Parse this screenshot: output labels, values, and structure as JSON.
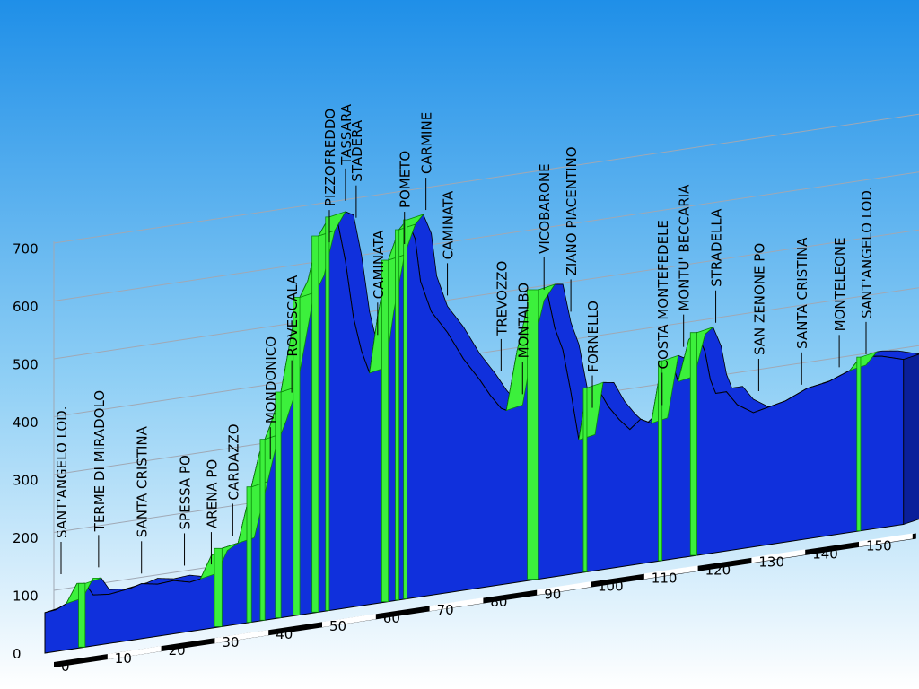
{
  "chart_data": {
    "type": "area",
    "subtype": "3d-elevation-profile",
    "title": "",
    "xlabel": "",
    "ylabel": "",
    "xlim": [
      0,
      160
    ],
    "ylim": [
      0,
      700
    ],
    "y_ticks": [
      0,
      100,
      200,
      300,
      400,
      500,
      600,
      700
    ],
    "x_ticks": [
      0,
      10,
      20,
      30,
      40,
      50,
      60,
      70,
      80,
      90,
      100,
      110,
      120,
      130,
      140,
      150
    ],
    "grid": true,
    "colors": {
      "sky_top": "#1f8fe8",
      "sky_mid": "#8fcff5",
      "sky_bottom": "#ffffff",
      "profile_fill": "#1030dc",
      "climb_fill": "#3cf03c",
      "climb_stroke": "#0a8a0a",
      "grid": "#a0a8b4",
      "axis_band": "#000000"
    },
    "profile": [
      [
        0,
        70
      ],
      [
        2,
        72
      ],
      [
        4,
        80
      ],
      [
        6,
        112
      ],
      [
        7.5,
        110
      ],
      [
        9,
        88
      ],
      [
        12,
        85
      ],
      [
        16,
        90
      ],
      [
        18,
        95
      ],
      [
        21,
        90
      ],
      [
        24,
        92
      ],
      [
        27,
        85
      ],
      [
        29,
        88
      ],
      [
        31,
        125
      ],
      [
        33,
        135
      ],
      [
        36,
        140
      ],
      [
        38,
        215
      ],
      [
        40,
        290
      ],
      [
        42,
        335
      ],
      [
        44,
        390
      ],
      [
        47,
        540
      ],
      [
        49,
        575
      ],
      [
        51,
        650
      ],
      [
        53,
        680
      ],
      [
        54.5,
        672
      ],
      [
        56,
        600
      ],
      [
        57.5,
        500
      ],
      [
        59,
        440
      ],
      [
        60.5,
        400
      ],
      [
        62,
        495
      ],
      [
        64,
        590
      ],
      [
        66,
        640
      ],
      [
        67.5,
        655
      ],
      [
        69,
        620
      ],
      [
        70,
        545
      ],
      [
        72,
        490
      ],
      [
        75,
        450
      ],
      [
        78,
        400
      ],
      [
        81,
        360
      ],
      [
        83,
        330
      ],
      [
        85,
        305
      ],
      [
        86,
        300
      ],
      [
        88,
        400
      ],
      [
        90,
        475
      ],
      [
        92,
        500
      ],
      [
        93.5,
        498
      ],
      [
        95,
        430
      ],
      [
        96.5,
        390
      ],
      [
        98,
        315
      ],
      [
        99.5,
        230
      ],
      [
        101,
        318
      ],
      [
        103,
        315
      ],
      [
        105,
        280
      ],
      [
        107,
        255
      ],
      [
        109,
        235
      ],
      [
        111,
        250
      ],
      [
        113,
        240
      ],
      [
        115,
        345
      ],
      [
        117,
        335
      ],
      [
        118,
        305
      ],
      [
        120,
        375
      ],
      [
        121.5,
        385
      ],
      [
        123,
        350
      ],
      [
        124,
        300
      ],
      [
        125,
        275
      ],
      [
        127,
        275
      ],
      [
        129,
        250
      ],
      [
        132,
        232
      ],
      [
        135,
        238
      ],
      [
        138,
        244
      ],
      [
        142,
        260
      ],
      [
        146,
        266
      ],
      [
        150,
        280
      ],
      [
        152,
        300
      ],
      [
        153,
        300
      ],
      [
        156,
        296
      ],
      [
        160,
        285
      ]
    ],
    "climbs": [
      [
        4,
        7.5
      ],
      [
        29,
        33
      ],
      [
        36,
        38.5
      ],
      [
        38.5,
        41
      ],
      [
        41,
        44
      ],
      [
        44,
        47.5
      ],
      [
        47.5,
        51
      ],
      [
        51,
        53
      ],
      [
        60.5,
        64
      ],
      [
        64,
        66
      ],
      [
        66,
        67.5
      ],
      [
        86,
        92
      ],
      [
        99.5,
        101
      ],
      [
        113,
        115
      ],
      [
        118,
        121.5
      ],
      [
        150,
        152
      ]
    ],
    "places": [
      {
        "name": "SANT'ANGELO LOD.",
        "km": 0
      },
      {
        "name": "TERME DI MIRADOLO",
        "km": 7
      },
      {
        "name": "SANTA CRISTINA",
        "km": 15
      },
      {
        "name": "SPESSA PO",
        "km": 23
      },
      {
        "name": "ARENA PO",
        "km": 28
      },
      {
        "name": "CARDAZZO",
        "km": 32
      },
      {
        "name": "MONDONICO",
        "km": 39
      },
      {
        "name": "ROVESCALA",
        "km": 43
      },
      {
        "name": "PIZZOFREDDO",
        "km": 50
      },
      {
        "name": "TASSARA",
        "km": 53
      },
      {
        "name": "STADERA",
        "km": 55
      },
      {
        "name": "CAMINATA",
        "km": 59
      },
      {
        "name": "POMETO",
        "km": 64
      },
      {
        "name": "CARMINE",
        "km": 68
      },
      {
        "name": "CAMINATA",
        "km": 72
      },
      {
        "name": "TREVOZZO",
        "km": 82
      },
      {
        "name": "MONTALBO",
        "km": 86
      },
      {
        "name": "VICOBARONE",
        "km": 90
      },
      {
        "name": "ZIANO PIACENTINO",
        "km": 95
      },
      {
        "name": "FORNELLO",
        "km": 99
      },
      {
        "name": "COSTA MONTEFEDELE",
        "km": 112
      },
      {
        "name": "MONTU' BECCARIA",
        "km": 116
      },
      {
        "name": "STRADELLA",
        "km": 122
      },
      {
        "name": "SAN ZENONE PO",
        "km": 130
      },
      {
        "name": "SANTA CRISTINA",
        "km": 138
      },
      {
        "name": "MONTELEONE",
        "km": 145
      },
      {
        "name": "SANT'ANGELO LOD.",
        "km": 150
      }
    ]
  }
}
